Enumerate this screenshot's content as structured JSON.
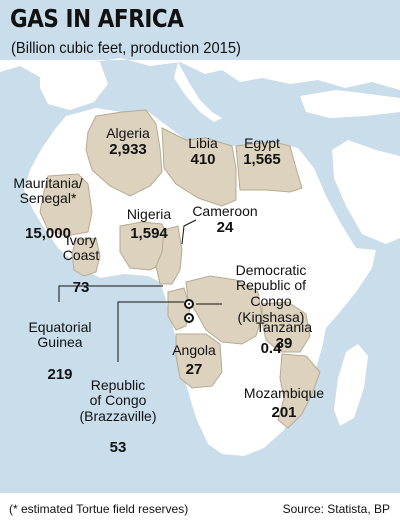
{
  "header": {
    "title": "GAS IN AFRICA",
    "subtitle": "(Billion cubic feet, production 2015)"
  },
  "colors": {
    "water": "#c9ddea",
    "land": "#ffffff",
    "highlight": "#dcd2bd",
    "border": "#b7aa92",
    "text": "#111111"
  },
  "countries": [
    {
      "id": "algeria",
      "name": "Algeria",
      "value": "2,933"
    },
    {
      "id": "libia",
      "name": "Libia",
      "value": "410"
    },
    {
      "id": "egypt",
      "name": "Egypt",
      "value": "1,565"
    },
    {
      "id": "mauritania-senegal",
      "name": "Mauritania/\nSenegal*",
      "value": "15,000"
    },
    {
      "id": "ivory-coast",
      "name": "Ivory\nCoast",
      "value": "73"
    },
    {
      "id": "nigeria",
      "name": "Nigeria",
      "value": "1,594"
    },
    {
      "id": "cameroon",
      "name": "Cameroon",
      "value": "24"
    },
    {
      "id": "drc",
      "name": "Democratic\nRepublic of Congo\n(Kinshasa)",
      "value": "0.4"
    },
    {
      "id": "equatorial-guinea",
      "name": "Equatorial\nGuinea",
      "value": "219"
    },
    {
      "id": "tanzania",
      "name": "Tanzania",
      "value": "39"
    },
    {
      "id": "republic-of-congo",
      "name": "Republic\nof Congo\n(Brazzaville)",
      "value": "53"
    },
    {
      "id": "angola",
      "name": "Angola",
      "value": "27"
    },
    {
      "id": "mozambique",
      "name": "Mozambique",
      "value": "201"
    }
  ],
  "footer": {
    "note": "(* estimated Tortue field reserves)",
    "source": "Source: Statista, BP"
  }
}
